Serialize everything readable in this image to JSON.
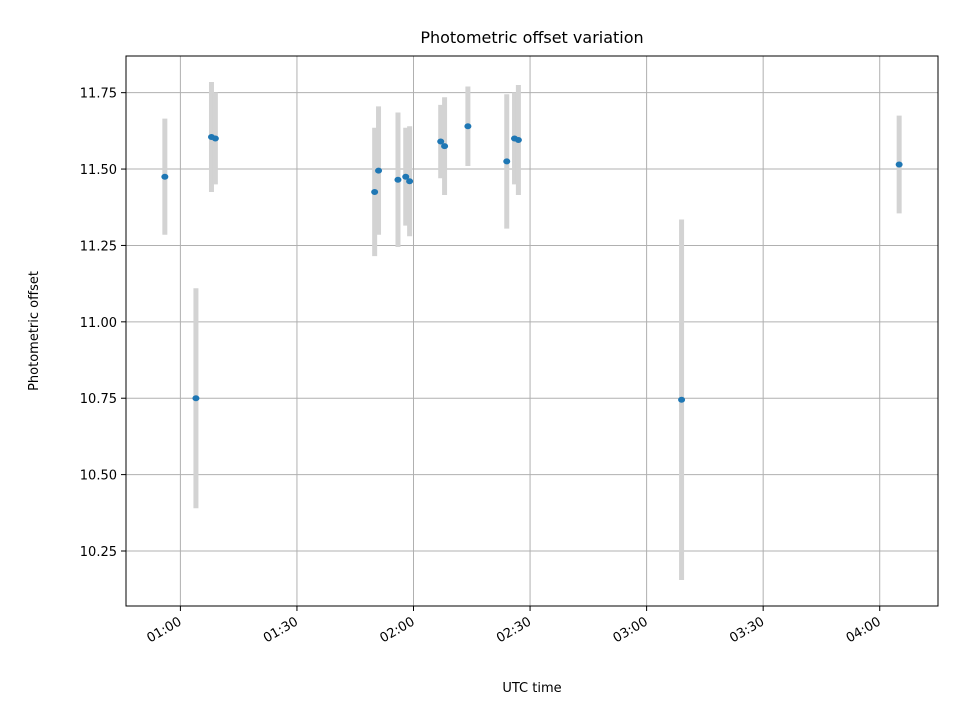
{
  "chart_data": {
    "type": "scatter",
    "title": "Photometric offset variation",
    "xlabel": "UTC time",
    "ylabel": "Photometric offset",
    "xlim": [
      "00:46",
      "04:15"
    ],
    "ylim": [
      10.07,
      11.87
    ],
    "grid": true,
    "colors": {
      "point": "#1f77b4",
      "errorbar": "#d3d3d3",
      "grid": "#b0b0b0"
    },
    "x_ticks": [
      "01:00",
      "01:30",
      "02:00",
      "02:30",
      "03:00",
      "03:30",
      "04:00"
    ],
    "y_ticks": [
      "10.25",
      "10.50",
      "10.75",
      "11.00",
      "11.25",
      "11.50",
      "11.75"
    ],
    "points": [
      {
        "t": "00:56",
        "y": 11.475,
        "err": 0.19
      },
      {
        "t": "01:04",
        "y": 10.75,
        "err": 0.36
      },
      {
        "t": "01:08",
        "y": 11.605,
        "err": 0.18
      },
      {
        "t": "01:09",
        "y": 11.6,
        "err": 0.15
      },
      {
        "t": "01:50",
        "y": 11.425,
        "err": 0.21
      },
      {
        "t": "01:51",
        "y": 11.495,
        "err": 0.21
      },
      {
        "t": "01:56",
        "y": 11.465,
        "err": 0.22
      },
      {
        "t": "01:58",
        "y": 11.475,
        "err": 0.16
      },
      {
        "t": "01:59",
        "y": 11.46,
        "err": 0.18
      },
      {
        "t": "02:07",
        "y": 11.59,
        "err": 0.12
      },
      {
        "t": "02:08",
        "y": 11.575,
        "err": 0.16
      },
      {
        "t": "02:14",
        "y": 11.64,
        "err": 0.13
      },
      {
        "t": "02:24",
        "y": 11.525,
        "err": 0.22
      },
      {
        "t": "02:26",
        "y": 11.6,
        "err": 0.15
      },
      {
        "t": "02:27",
        "y": 11.595,
        "err": 0.18
      },
      {
        "t": "03:09",
        "y": 10.745,
        "err": 0.59
      },
      {
        "t": "04:05",
        "y": 11.515,
        "err": 0.16
      }
    ]
  }
}
